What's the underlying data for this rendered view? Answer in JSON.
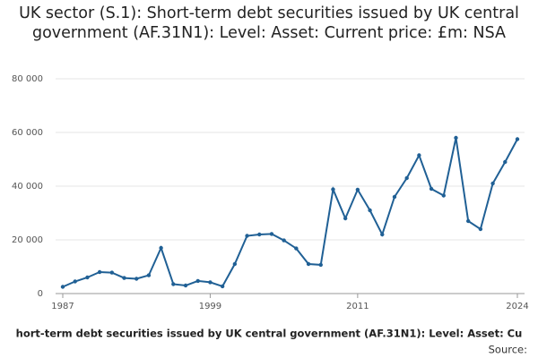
{
  "chart_data": {
    "type": "line",
    "title": "UK sector (S.1): Short-term debt securities issued by UK central government (AF.31N1): Level: Asset: Current price: £m: NSA",
    "footer": "hort-term debt securities issued by UK central government (AF.31N1): Level: Asset: Cu",
    "source": "Source:",
    "x": [
      1987,
      1988,
      1989,
      1990,
      1991,
      1992,
      1993,
      1994,
      1995,
      1996,
      1997,
      1998,
      1999,
      2000,
      2001,
      2002,
      2003,
      2004,
      2005,
      2006,
      2007,
      2008,
      2009,
      2010,
      2011,
      2012,
      2013,
      2014,
      2015,
      2016,
      2017,
      2018,
      2019,
      2020,
      2021,
      2022,
      2023,
      2024
    ],
    "series": [
      {
        "name": "UK sector (S.1): Short-term debt securities issued by UK central government (AF.31N1): Level: Asset: Current price: £m: NSA",
        "color": "#206095",
        "values": [
          2500,
          4500,
          6000,
          8000,
          7800,
          5800,
          5500,
          6800,
          17000,
          3500,
          3000,
          4700,
          4200,
          2700,
          11000,
          21500,
          22000,
          22200,
          19800,
          16800,
          11000,
          10700,
          38800,
          28000,
          38700,
          31000,
          22000,
          36000,
          43000,
          51500,
          39000,
          36500,
          58000,
          27000,
          24000,
          41000,
          49000,
          57500
        ]
      }
    ],
    "xlim": [
      1987,
      2024
    ],
    "xticks": [
      1987,
      1999,
      2011,
      2024
    ],
    "ylim": [
      0,
      80000
    ],
    "yticks": [
      0,
      {
        "value": 20000,
        "label": "20 000"
      },
      {
        "value": 40000,
        "label": "40 000"
      },
      {
        "value": 60000,
        "label": "60 000"
      },
      {
        "value": 80000,
        "label": "80 000"
      }
    ],
    "grid": true
  }
}
